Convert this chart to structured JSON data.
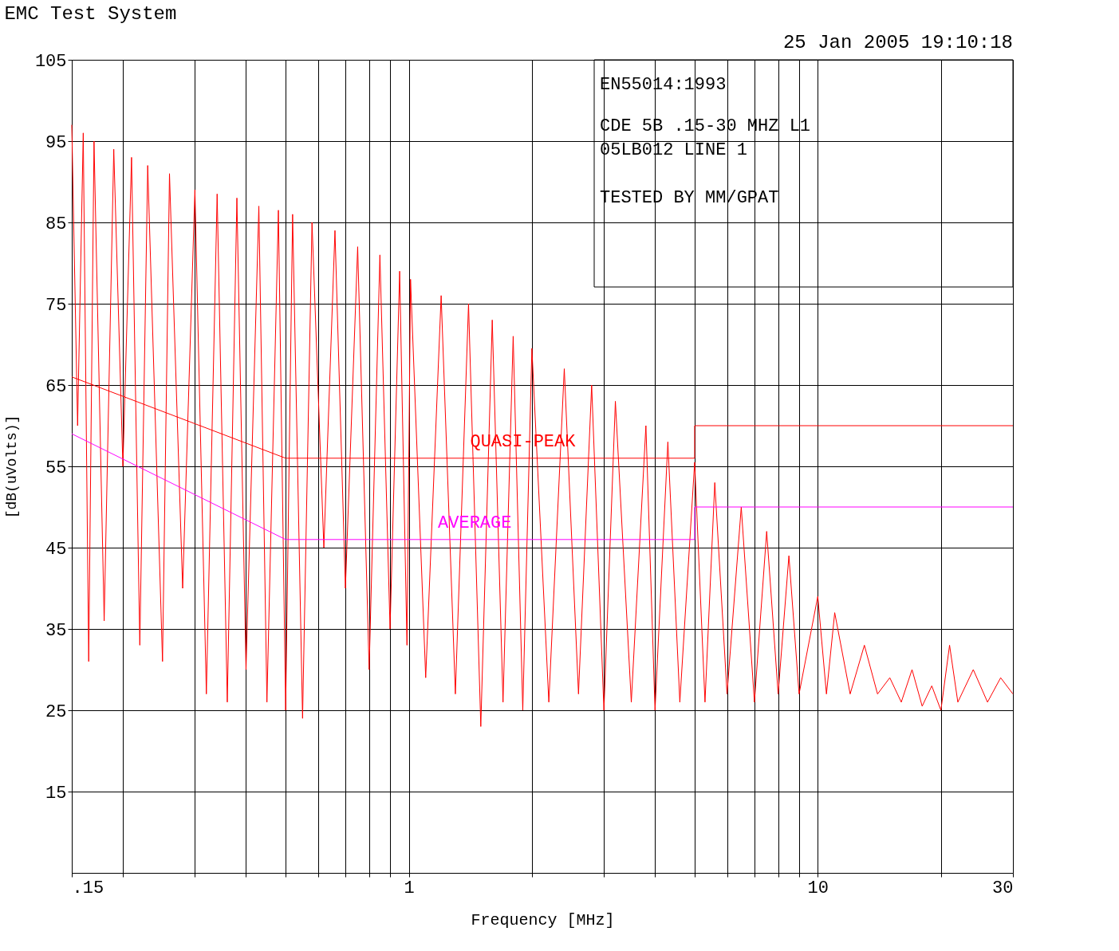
{
  "chart_data": {
    "type": "line",
    "title": "EMC Test System",
    "xlabel": "Frequency [MHz]",
    "ylabel": "[dB(uVolts)]",
    "log": "x",
    "grid": true,
    "xlim": [
      0.15,
      30
    ],
    "ylim": [
      5,
      105
    ],
    "xticks": [
      {
        "value": 0.15,
        "label": ".15"
      },
      {
        "value": 0.2,
        "label": null
      },
      {
        "value": 0.3,
        "label": null
      },
      {
        "value": 0.4,
        "label": null
      },
      {
        "value": 0.5,
        "label": null
      },
      {
        "value": 0.6,
        "label": null
      },
      {
        "value": 0.7,
        "label": null
      },
      {
        "value": 0.8,
        "label": null
      },
      {
        "value": 0.9,
        "label": null
      },
      1,
      {
        "value": 2,
        "label": null
      },
      {
        "value": 3,
        "label": null
      },
      {
        "value": 4,
        "label": null
      },
      {
        "value": 5,
        "label": null
      },
      {
        "value": 6,
        "label": null
      },
      {
        "value": 7,
        "label": null
      },
      {
        "value": 8,
        "label": null
      },
      {
        "value": 9,
        "label": null
      },
      10,
      {
        "value": 20,
        "label": null
      },
      30
    ],
    "yticks": [
      15,
      25,
      35,
      45,
      55,
      65,
      75,
      85,
      95,
      105
    ],
    "series": [
      {
        "color": "#ff0000",
        "x": [
          0.15,
          0.155,
          0.16,
          0.165,
          0.17,
          0.18,
          0.19,
          0.2,
          0.21,
          0.22,
          0.23,
          0.25,
          0.26,
          0.28,
          0.3,
          0.32,
          0.34,
          0.36,
          0.38,
          0.4,
          0.43,
          0.45,
          0.48,
          0.5,
          0.52,
          0.55,
          0.58,
          0.62,
          0.66,
          0.7,
          0.75,
          0.8,
          0.85,
          0.9,
          0.95,
          0.99,
          1.01,
          1.1,
          1.2,
          1.3,
          1.4,
          1.5,
          1.6,
          1.7,
          1.8,
          1.9,
          2.0,
          2.2,
          2.4,
          2.6,
          2.8,
          3.0,
          3.2,
          3.5,
          3.8,
          4.0,
          4.3,
          4.6,
          5.0,
          5.3,
          5.6,
          6.0,
          6.5,
          7.0,
          7.5,
          8.0,
          8.5,
          9.0,
          10,
          10.5,
          11,
          12,
          13,
          14,
          15,
          16,
          17,
          18,
          19,
          20,
          21,
          22,
          24,
          26,
          28,
          30
        ],
        "values": [
          97,
          60,
          96,
          31,
          95,
          36,
          94,
          55,
          93,
          33,
          92,
          31,
          91,
          40,
          89,
          27,
          88.5,
          26,
          88,
          30,
          87,
          26,
          86.5,
          25,
          86,
          24,
          85,
          45,
          84,
          40,
          82,
          30,
          81,
          35,
          79,
          33,
          78,
          29,
          76,
          27,
          75,
          23,
          73,
          26,
          71,
          25,
          69.5,
          26,
          67,
          27,
          65,
          25,
          63,
          26,
          60,
          25,
          58,
          26,
          55.5,
          26,
          53,
          27,
          50,
          26,
          47,
          27,
          44,
          27,
          39,
          27,
          37,
          27,
          33,
          27,
          29,
          26,
          30,
          25.5,
          28,
          25,
          33,
          26,
          30,
          26,
          29,
          27
        ]
      },
      {
        "color": "#ff0000",
        "x": [
          0.15,
          0.5,
          5,
          5,
          30
        ],
        "values": [
          66,
          56,
          56,
          60,
          60
        ]
      },
      {
        "color": "#ff00ff",
        "x": [
          0.15,
          0.5,
          5,
          5,
          30
        ],
        "values": [
          59,
          46,
          46,
          50,
          50
        ]
      }
    ],
    "annotations": [
      "25 Jan 2005   19:10:18",
      "EN55014:1993",
      "CDE 5B   .15-30  MHZ  L1",
      "05LB012     LINE 1",
      "TESTED BY MM/GPAT",
      {
        "text": "QUASI-PEAK",
        "x": 1.9,
        "y": 56
      },
      {
        "text": "AVERAGE",
        "x": 1.45,
        "y": 46
      }
    ]
  }
}
